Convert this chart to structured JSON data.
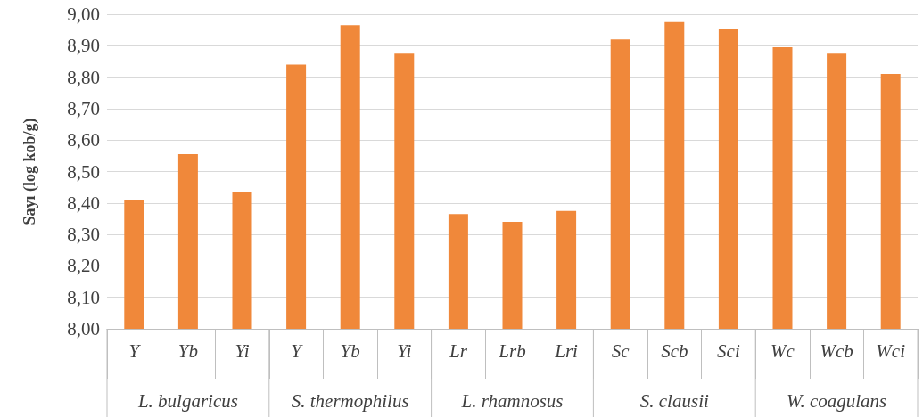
{
  "chart_data": {
    "type": "bar",
    "ylabel": "Sayı (log kob/g)",
    "categories": [
      "Y",
      "Yb",
      "Yi",
      "Y",
      "Yb",
      "Yi",
      "Lr",
      "Lrb",
      "Lri",
      "Sc",
      "Scb",
      "Sci",
      "Wc",
      "Wcb",
      "Wci"
    ],
    "values": [
      8.41,
      8.555,
      8.435,
      8.84,
      8.965,
      8.875,
      8.365,
      8.34,
      8.375,
      8.92,
      8.975,
      8.955,
      8.895,
      8.875,
      8.81
    ],
    "color": "#f0883a",
    "ylim": [
      8,
      9
    ],
    "yticks": [
      {
        "value": 8,
        "label": "8,00"
      },
      {
        "value": 8.1,
        "label": "8,10"
      },
      {
        "value": 8.2,
        "label": "8,20"
      },
      {
        "value": 8.3,
        "label": "8,30"
      },
      {
        "value": 8.4,
        "label": "8,40"
      },
      {
        "value": 8.5,
        "label": "8,50"
      },
      {
        "value": 8.6,
        "label": "8,60"
      },
      {
        "value": 8.7,
        "label": "8,70"
      },
      {
        "value": 8.8,
        "label": "8,80"
      },
      {
        "value": 8.9,
        "label": "8,90"
      },
      {
        "value": 9,
        "label": "9,00"
      }
    ],
    "grid": true,
    "annotations": [
      "L. bulgaricus",
      "S. thermophilus",
      "L. rhamnosus",
      "S. clausii",
      "W. coagulans"
    ]
  }
}
